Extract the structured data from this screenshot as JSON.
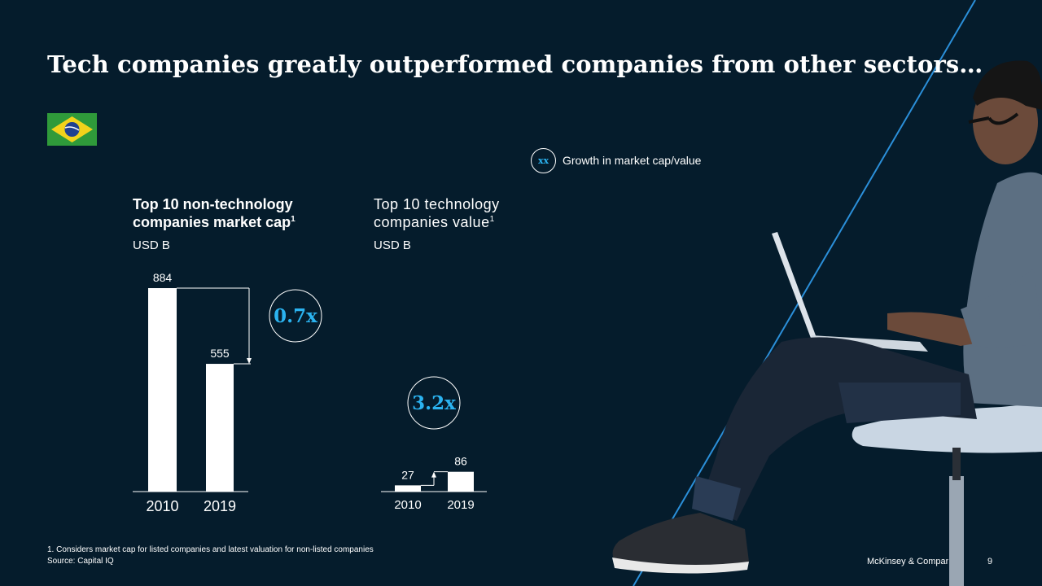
{
  "title": "Tech companies greatly outperformed companies from other sectors…",
  "legend": {
    "symbol": "xx",
    "label": "Growth in market cap/value"
  },
  "footnote": {
    "note": "1. Considers market cap for listed companies and latest valuation for non-listed companies",
    "source": "Source: Capital IQ"
  },
  "footer": {
    "brand": "McKinsey & Company",
    "page": "9"
  },
  "colors": {
    "background": "#051c2c",
    "bar": "#ffffff",
    "accent": "#2bb3f0"
  },
  "chart_data": [
    {
      "type": "bar",
      "title": "Top 10 non-technology companies market cap",
      "footnote_marker": "1",
      "unit": "USD B",
      "categories": [
        "2010",
        "2019"
      ],
      "values": [
        884,
        555
      ],
      "data_labels": [
        "884",
        "555"
      ],
      "growth": "0.7x"
    },
    {
      "type": "bar",
      "title": "Top 10 technology companies value",
      "footnote_marker": "1",
      "unit": "USD B",
      "categories": [
        "2010",
        "2019"
      ],
      "values": [
        27,
        86
      ],
      "data_labels": [
        "27",
        "86"
      ],
      "growth": "3.2x"
    }
  ]
}
